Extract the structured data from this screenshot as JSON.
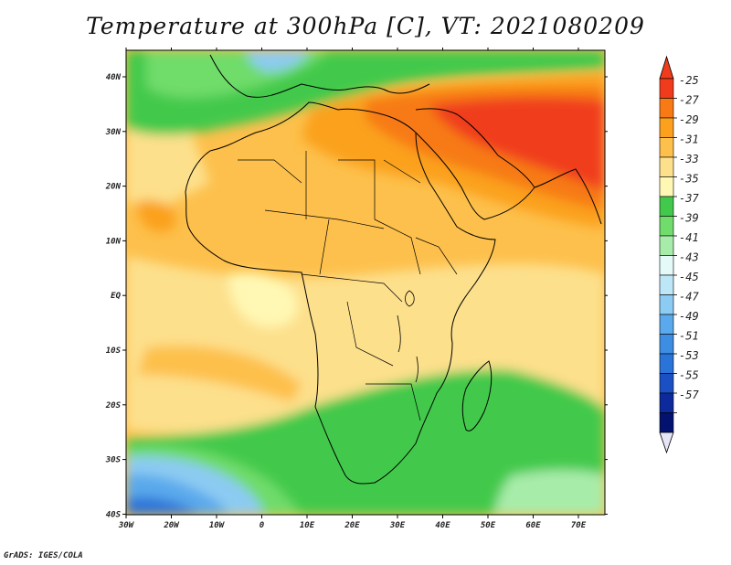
{
  "title": "Temperature at 300hPa [C], VT: 2021080209",
  "credit": "GrADS: IGES/COLA",
  "map": {
    "lon_labels": [
      "30W",
      "20W",
      "10W",
      "0",
      "10E",
      "20E",
      "30E",
      "40E",
      "50E",
      "60E",
      "70E"
    ],
    "lat_labels": [
      "40N",
      "30N",
      "20N",
      "10N",
      "EQ",
      "10S",
      "20S",
      "30S",
      "40S"
    ]
  },
  "colorbar": {
    "labels": [
      "-25",
      "-27",
      "-29",
      "-31",
      "-33",
      "-35",
      "-37",
      "-39",
      "-41",
      "-43",
      "-45",
      "-47",
      "-49",
      "-51",
      "-53",
      "-55",
      "-57"
    ],
    "colors": [
      "#f03c1c",
      "#f77a14",
      "#fba11e",
      "#fdc04c",
      "#fde08c",
      "#fff8b4",
      "#42c94b",
      "#70dc6b",
      "#a8ecaa",
      "#e4faf9",
      "#bde6f7",
      "#8ccbf2",
      "#5aa9ec",
      "#3d8de3",
      "#2a73d8",
      "#1b50c4",
      "#0c2a9c",
      "#02126e"
    ],
    "over_color": "#f03c1c",
    "under_color": "#e6e6f7"
  }
}
